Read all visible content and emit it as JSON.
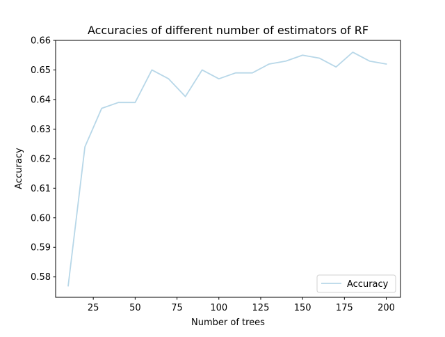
{
  "chart_data": {
    "type": "line",
    "title": "Accuracies of different number of estimators of RF",
    "xlabel": "Number of trees",
    "ylabel": "Accuracy",
    "xlim": [
      2.5,
      208.5
    ],
    "ylim": [
      0.5731,
      0.66
    ],
    "xticks": [
      25,
      50,
      75,
      100,
      125,
      150,
      175,
      200
    ],
    "yticks": [
      0.58,
      0.59,
      0.6,
      0.61,
      0.62,
      0.63,
      0.64,
      0.65,
      0.66
    ],
    "xtick_labels": [
      "25",
      "50",
      "75",
      "100",
      "125",
      "150",
      "175",
      "200"
    ],
    "ytick_labels": [
      "0.58",
      "0.59",
      "0.60",
      "0.61",
      "0.62",
      "0.63",
      "0.64",
      "0.65",
      "0.66"
    ],
    "grid": false,
    "legend_position": "lower-right",
    "series": [
      {
        "name": "Accuracy",
        "color": "#b7d7e8",
        "x": [
          10,
          20,
          30,
          40,
          50,
          60,
          70,
          80,
          90,
          100,
          110,
          120,
          130,
          140,
          150,
          160,
          170,
          180,
          190,
          200
        ],
        "y": [
          0.577,
          0.624,
          0.637,
          0.639,
          0.639,
          0.65,
          0.647,
          0.641,
          0.65,
          0.647,
          0.649,
          0.649,
          0.652,
          0.653,
          0.655,
          0.654,
          0.651,
          0.656,
          0.653,
          0.652
        ]
      }
    ]
  }
}
